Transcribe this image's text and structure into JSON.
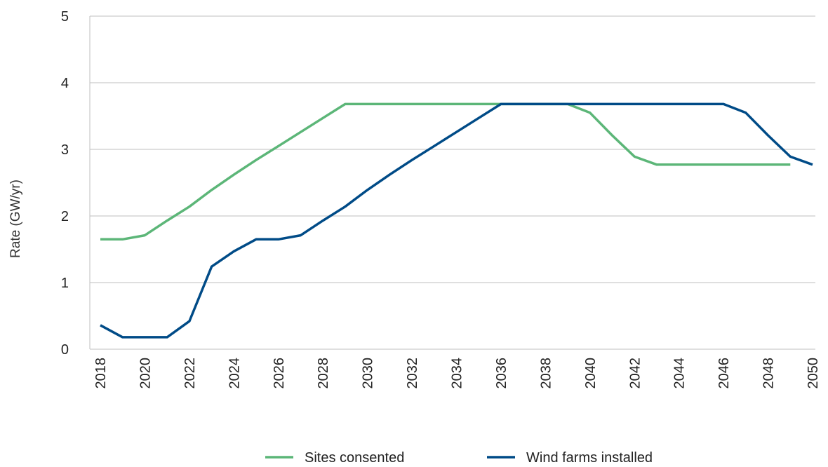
{
  "chart_data": {
    "type": "line",
    "title": "",
    "xlabel": "",
    "ylabel": "Rate (GW/yr)",
    "x": [
      2018,
      2019,
      2020,
      2021,
      2022,
      2023,
      2024,
      2025,
      2026,
      2027,
      2028,
      2029,
      2030,
      2031,
      2032,
      2033,
      2034,
      2035,
      2036,
      2037,
      2038,
      2039,
      2040,
      2041,
      2042,
      2043,
      2044,
      2045,
      2046,
      2047,
      2048,
      2049,
      2050
    ],
    "xticks": [
      "2018",
      "2020",
      "2022",
      "2024",
      "2026",
      "2028",
      "2030",
      "2032",
      "2034",
      "2036",
      "2038",
      "2040",
      "2042",
      "2044",
      "2046",
      "2048",
      "2050"
    ],
    "yticks": [
      "0",
      "1",
      "2",
      "3",
      "4",
      "5"
    ],
    "ylim": [
      0,
      5
    ],
    "xlim": [
      2018,
      2050
    ],
    "grid": "horizontal",
    "legend_position": "bottom",
    "series": [
      {
        "name": "Sites consented",
        "color": "#5cb678",
        "values": [
          1.65,
          1.65,
          1.71,
          1.93,
          2.14,
          2.39,
          2.62,
          2.84,
          3.05,
          3.26,
          3.47,
          3.68,
          3.68,
          3.68,
          3.68,
          3.68,
          3.68,
          3.68,
          3.68,
          3.68,
          3.68,
          3.68,
          3.55,
          3.21,
          2.89,
          2.77,
          2.77,
          2.77,
          2.77,
          2.77,
          2.77,
          2.77,
          null
        ]
      },
      {
        "name": "Wind farms installed",
        "color": "#004b87",
        "values": [
          0.36,
          0.18,
          0.18,
          0.18,
          0.42,
          1.24,
          1.47,
          1.65,
          1.65,
          1.71,
          1.93,
          2.14,
          2.39,
          2.62,
          2.84,
          3.05,
          3.26,
          3.47,
          3.68,
          3.68,
          3.68,
          3.68,
          3.68,
          3.68,
          3.68,
          3.68,
          3.68,
          3.68,
          3.68,
          3.55,
          3.21,
          2.89,
          2.77
        ]
      }
    ]
  }
}
